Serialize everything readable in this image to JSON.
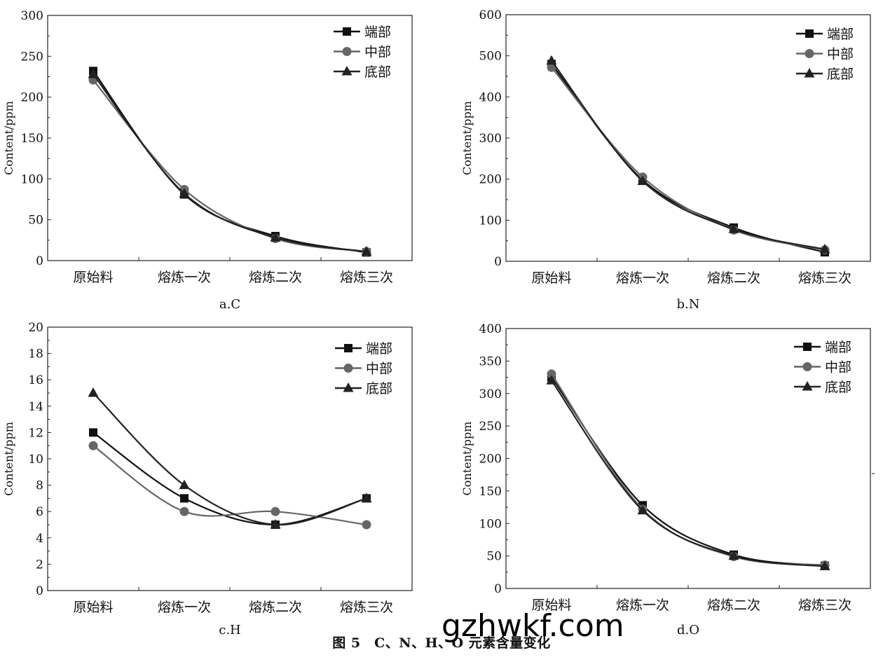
{
  "figure": {
    "caption": "图 5　C、N、H、O 元素含量变化",
    "watermark": "gzhwkf.com"
  },
  "series_styles": [
    {
      "name": "端部",
      "marker": "square",
      "color": "#111111"
    },
    {
      "name": "中部",
      "marker": "circle",
      "color": "#666666"
    },
    {
      "name": "底部",
      "marker": "triangle",
      "color": "#222222"
    }
  ],
  "chart_data": [
    {
      "type": "line",
      "subtitle": "a.C",
      "ylabel": "Content/ppm",
      "categories": [
        "原始料",
        "熔炼一次",
        "熔炼二次",
        "熔炼三次"
      ],
      "ylim": [
        0,
        300
      ],
      "yticks": [
        0,
        50,
        100,
        150,
        200,
        250,
        300
      ],
      "legend": "top-right",
      "series": [
        {
          "name": "端部",
          "values": [
            232,
            81,
            30,
            10
          ]
        },
        {
          "name": "中部",
          "values": [
            221,
            87,
            27,
            11
          ]
        },
        {
          "name": "底部",
          "values": [
            228,
            82,
            28,
            11
          ]
        }
      ]
    },
    {
      "type": "line",
      "subtitle": "b.N",
      "ylabel": "Content/ppm",
      "categories": [
        "原始料",
        "熔炼一次",
        "熔炼二次",
        "熔炼三次"
      ],
      "ylim": [
        0,
        600
      ],
      "yticks": [
        0,
        100,
        200,
        300,
        400,
        500,
        600
      ],
      "legend": "top-right",
      "series": [
        {
          "name": "端部",
          "values": [
            480,
            198,
            82,
            22
          ]
        },
        {
          "name": "中部",
          "values": [
            472,
            205,
            76,
            28
          ]
        },
        {
          "name": "底部",
          "values": [
            488,
            195,
            78,
            29
          ]
        }
      ]
    },
    {
      "type": "line",
      "subtitle": "c.H",
      "ylabel": "Content/ppm",
      "categories": [
        "原始料",
        "熔炼一次",
        "熔炼二次",
        "熔炼三次"
      ],
      "ylim": [
        0,
        20
      ],
      "yticks": [
        0,
        2,
        4,
        6,
        8,
        10,
        12,
        14,
        16,
        18,
        20
      ],
      "legend": "top-right",
      "series": [
        {
          "name": "端部",
          "values": [
            12,
            7,
            5,
            7
          ]
        },
        {
          "name": "中部",
          "values": [
            11,
            6,
            6,
            5
          ]
        },
        {
          "name": "底部",
          "values": [
            15,
            8,
            5,
            7
          ]
        }
      ]
    },
    {
      "type": "line",
      "subtitle": "d.O",
      "ylabel": "Content/ppm",
      "categories": [
        "原始料",
        "熔炼一次",
        "熔炼二次",
        "熔炼三次"
      ],
      "ylim": [
        0,
        400
      ],
      "yticks": [
        0,
        50,
        100,
        150,
        200,
        250,
        300,
        350,
        400
      ],
      "legend": "top-right",
      "series": [
        {
          "name": "端部",
          "values": [
            325,
            128,
            52,
            35
          ]
        },
        {
          "name": "中部",
          "values": [
            330,
            122,
            49,
            36
          ]
        },
        {
          "name": "底部",
          "values": [
            320,
            120,
            50,
            34
          ]
        }
      ]
    }
  ]
}
